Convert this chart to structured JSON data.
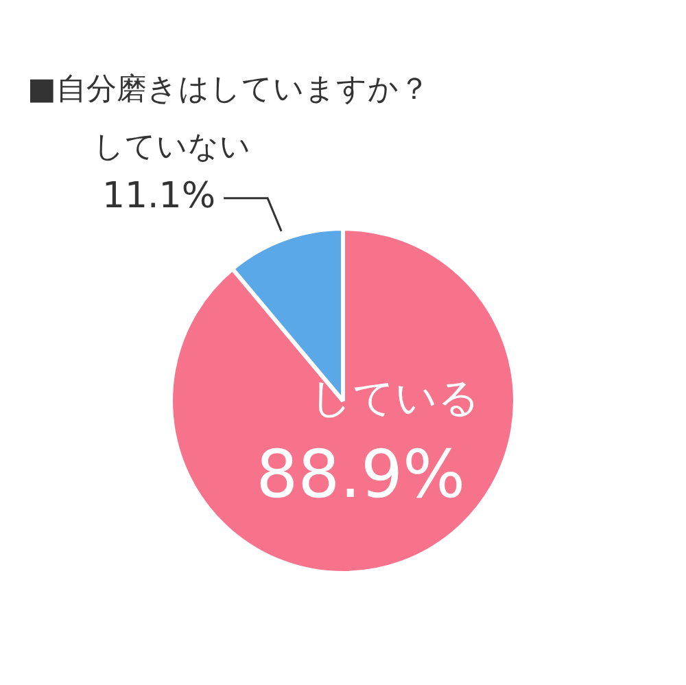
{
  "chart_data": {
    "type": "pie",
    "title": "■自分磨きはしていますか？",
    "categories": [
      "している",
      "していない"
    ],
    "values": [
      88.9,
      11.1
    ],
    "colors": [
      "#f7738c",
      "#5ba8e8"
    ],
    "value_labels": [
      "88.9%",
      "11.1%"
    ],
    "legend": false
  }
}
